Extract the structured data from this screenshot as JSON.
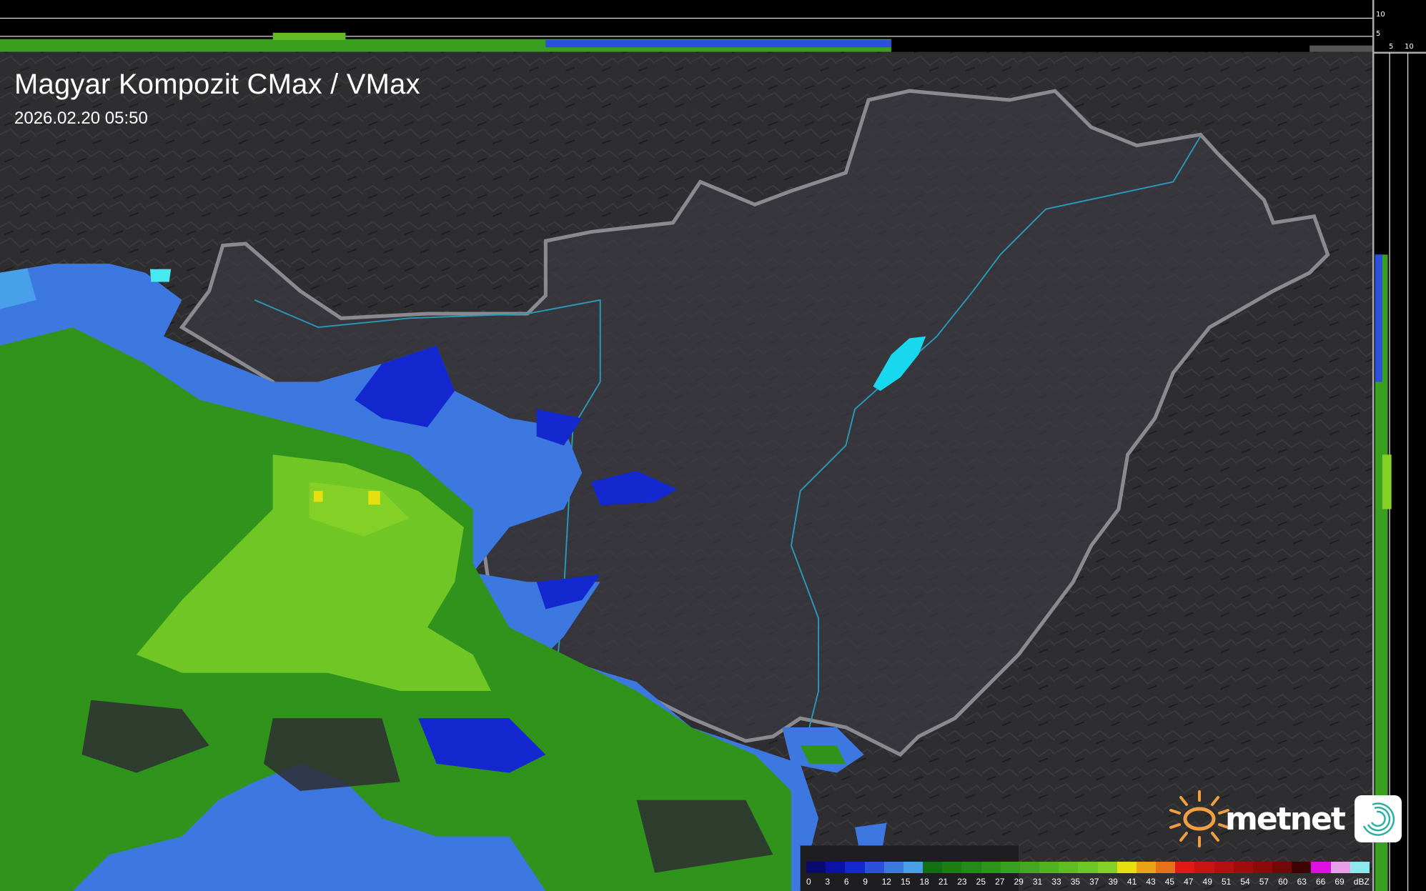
{
  "header": {
    "title": "Magyar Kompozit CMax / VMax",
    "timestamp": "2026.02.20 05:50"
  },
  "side_axes": {
    "top_ticks": [
      "10",
      "5"
    ],
    "right_ticks": [
      "5",
      "10"
    ]
  },
  "legend": {
    "unit": "dBZ",
    "labels": [
      "0",
      "3",
      "6",
      "9",
      "12",
      "15",
      "18",
      "21",
      "23",
      "25",
      "27",
      "29",
      "31",
      "33",
      "35",
      "37",
      "39",
      "41",
      "43",
      "45",
      "47",
      "49",
      "51",
      "54",
      "57",
      "60",
      "63",
      "66",
      "69"
    ],
    "colors": [
      "#0a0a6e",
      "#0a12a8",
      "#1428d0",
      "#2c50dc",
      "#3c78e0",
      "#48a0e8",
      "#146e14",
      "#1e7e14",
      "#26881a",
      "#30941c",
      "#3a9e1e",
      "#46a81e",
      "#52b220",
      "#60bc22",
      "#70c624",
      "#84d026",
      "#e6e010",
      "#e8a414",
      "#e87018",
      "#e01818",
      "#c81414",
      "#b41010",
      "#a00c0c",
      "#8c0a0a",
      "#740808",
      "#3c0404",
      "#e010e0",
      "#e8a0e8",
      "#90e8ec"
    ]
  },
  "brand": {
    "name": "metnet",
    "accent": "#f0a040"
  }
}
